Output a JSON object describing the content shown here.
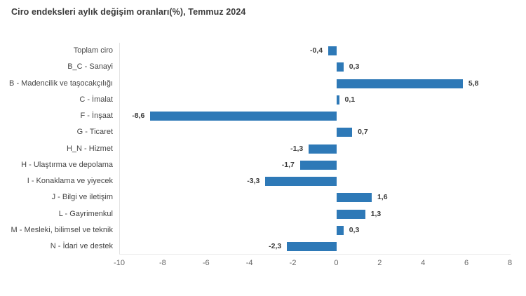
{
  "title": "Ciro endeksleri aylık değişim oranları(%), Temmuz 2024",
  "chart_data": {
    "type": "bar",
    "orientation": "horizontal",
    "title": "Ciro endeksleri aylık değişim oranları(%), Temmuz 2024",
    "categories": [
      "Toplam ciro",
      "B_C - Sanayi",
      "B - Madencilik ve taşocakçılığı",
      "C - İmalat",
      "F - İnşaat",
      "G - Ticaret",
      "H_N - Hizmet",
      "H - Ulaştırma ve depolama",
      "I - Konaklama ve yiyecek",
      "J - Bilgi ve iletişim",
      "L - Gayrimenkul",
      "M - Mesleki, bilimsel ve teknik",
      "N - İdari ve destek"
    ],
    "values": [
      -0.4,
      0.3,
      5.8,
      0.1,
      -8.6,
      0.7,
      -1.3,
      -1.7,
      -3.3,
      1.6,
      1.3,
      0.3,
      -2.3
    ],
    "value_labels": [
      "-0,4",
      "0,3",
      "5,8",
      "0,1",
      "-8,6",
      "0,7",
      "-1,3",
      "-1,7",
      "-3,3",
      "1,6",
      "1,3",
      "0,3",
      "-2,3"
    ],
    "xlabel": "",
    "ylabel": "",
    "xlim": [
      -10,
      8
    ],
    "x_ticks": [
      -10,
      -8,
      -6,
      -4,
      -2,
      0,
      2,
      4,
      6,
      8
    ],
    "x_tick_labels": [
      "-10",
      "-8",
      "-6",
      "-4",
      "-2",
      "0",
      "2",
      "4",
      "6",
      "8"
    ],
    "bar_color": "#2e79b7",
    "grid": false,
    "legend": false
  }
}
